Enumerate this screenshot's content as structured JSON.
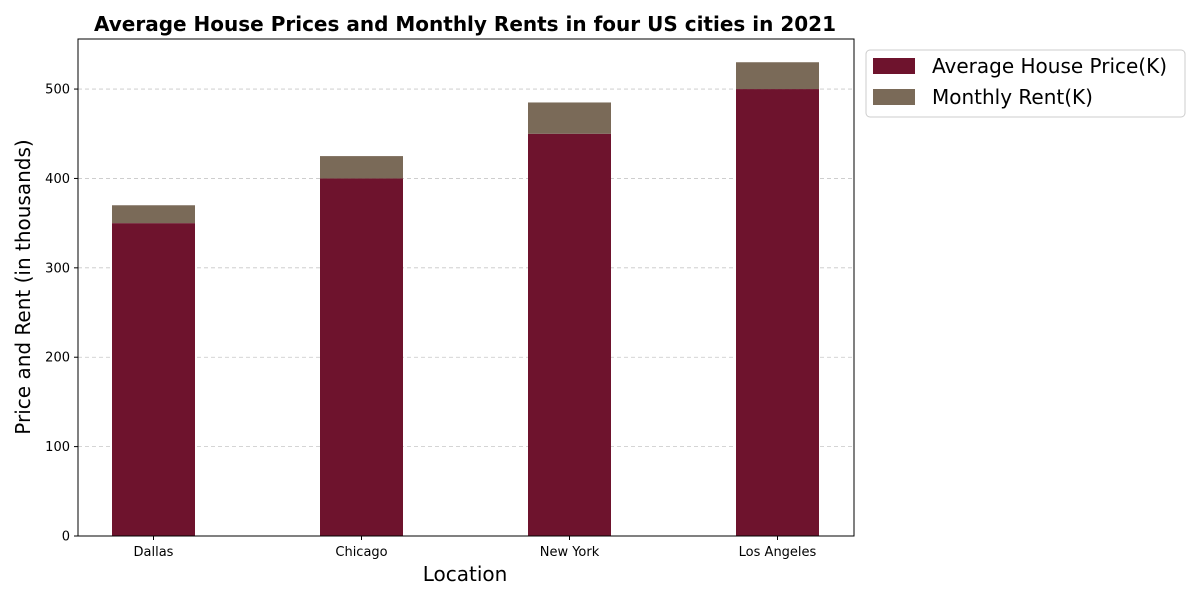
{
  "chart_data": {
    "type": "bar",
    "stacked": true,
    "title": "Average House Prices and Monthly Rents in four US cities in 2021",
    "xlabel": "Location",
    "ylabel": "Price and Rent (in thousands)",
    "categories": [
      "Dallas",
      "Chicago",
      "New York",
      "Los Angeles"
    ],
    "series": [
      {
        "name": "Average House Price(K)",
        "values": [
          350,
          400,
          450,
          500
        ],
        "color": "#6e132d"
      },
      {
        "name": "Monthly Rent(K)",
        "values": [
          20,
          25,
          35,
          30
        ],
        "color": "#7a6a58"
      }
    ],
    "ylim": [
      0,
      556
    ],
    "yticks": [
      0,
      100,
      200,
      300,
      400,
      500
    ],
    "grid": "y-dashed",
    "legend_position": "outside-top-right"
  }
}
